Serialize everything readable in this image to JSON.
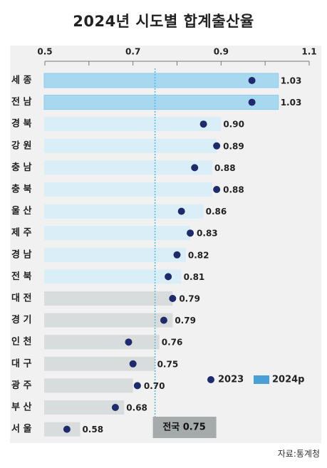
{
  "title": "2024년 시도별 합계출산율",
  "source": "자료:통계청",
  "colors": {
    "bar_high": "#a8d8f0",
    "bar_high_top": "#8ccbeb",
    "bar_mid": "#daeef8",
    "bar_low": "#d9dcdc",
    "dot": "#1d2a6b",
    "national_box": "#a5aaaa",
    "national_line": "#55b8e0",
    "legend_2024": "#4a9fd4"
  },
  "chart_data": {
    "type": "bar",
    "orientation": "horizontal",
    "xlim": [
      0.5,
      1.1
    ],
    "xticks": [
      "0.5",
      "0.7",
      "0.9",
      "1.1"
    ],
    "categories": [
      "세 종",
      "전 남",
      "경 북",
      "강 원",
      "충 남",
      "충 북",
      "울 산",
      "제 주",
      "경 남",
      "전 북",
      "대 전",
      "경 기",
      "인 천",
      "대 구",
      "광 주",
      "부 산",
      "서 울"
    ],
    "series": [
      {
        "name": "2024p",
        "type": "bar",
        "values": [
          1.03,
          1.03,
          0.9,
          0.89,
          0.88,
          0.88,
          0.86,
          0.83,
          0.82,
          0.81,
          0.79,
          0.79,
          0.76,
          0.75,
          0.7,
          0.68,
          0.58
        ]
      },
      {
        "name": "2023",
        "type": "dot",
        "values": [
          0.97,
          0.97,
          0.86,
          0.89,
          0.84,
          0.89,
          0.81,
          0.83,
          0.8,
          0.78,
          0.79,
          0.77,
          0.69,
          0.7,
          0.71,
          0.66,
          0.55
        ]
      }
    ],
    "value_labels": [
      "1.03",
      "1.03",
      "0.90",
      "0.89",
      "0.88",
      "0.88",
      "0.86",
      "0.83",
      "0.82",
      "0.81",
      "0.79",
      "0.79",
      "0.76",
      "0.75",
      "0.70",
      "0.68",
      "0.58"
    ],
    "reference": {
      "label": "전국 0.75",
      "value": 0.75
    },
    "legend": {
      "placement": "bottom-right",
      "items": [
        "2023",
        "2024p"
      ]
    }
  }
}
